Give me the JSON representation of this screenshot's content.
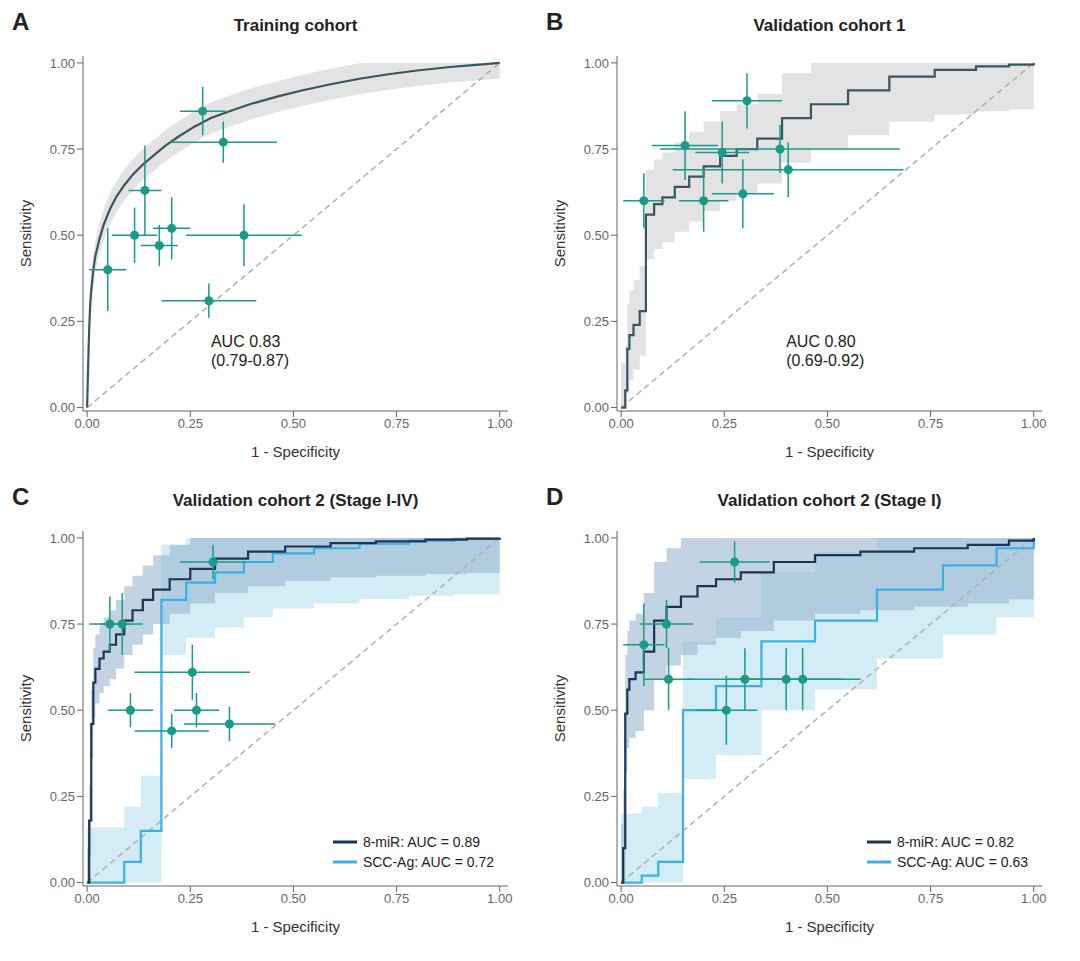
{
  "chart_data": [
    {
      "type": "line",
      "panel_label": "A",
      "title": "Training cohort",
      "xlabel": "1 - Specificity",
      "ylabel": "Sensitivity",
      "xlim": [
        -0.01,
        1.02
      ],
      "ylim": [
        -0.01,
        1.02
      ],
      "xticks": [
        {
          "value": 0,
          "label": "0.00"
        },
        {
          "value": 0.25,
          "label": "0.25"
        },
        {
          "value": 0.5,
          "label": "0.50"
        },
        {
          "value": 0.75,
          "label": "0.75"
        },
        {
          "value": 1,
          "label": "1.00"
        }
      ],
      "yticks": [
        {
          "value": 0,
          "label": "0.00"
        },
        {
          "value": 0.25,
          "label": "0.25"
        },
        {
          "value": 0.5,
          "label": "0.50"
        },
        {
          "value": 0.75,
          "label": "0.75"
        },
        {
          "value": 1,
          "label": "1.00"
        }
      ],
      "grid": false,
      "reference_line": {
        "x": [
          0,
          1
        ],
        "y": [
          0,
          1
        ],
        "color": "#b0b0b0",
        "line_style": "dashed"
      },
      "series": [
        {
          "type": "line",
          "color": "#3a5560",
          "ci_color": "#d0d0d0",
          "x": [
            0.0,
            0.002,
            0.004,
            0.006,
            0.008,
            0.01,
            0.015,
            0.02,
            0.03,
            0.04,
            0.055,
            0.07,
            0.09,
            0.11,
            0.135,
            0.16,
            0.19,
            0.22,
            0.26,
            0.3,
            0.35,
            0.4,
            0.46,
            0.52,
            0.59,
            0.66,
            0.73,
            0.8,
            0.88,
            0.95,
            1.0
          ],
          "values": [
            0.0,
            0.1,
            0.19,
            0.26,
            0.31,
            0.34,
            0.4,
            0.44,
            0.49,
            0.53,
            0.575,
            0.61,
            0.645,
            0.675,
            0.705,
            0.73,
            0.76,
            0.785,
            0.815,
            0.84,
            0.862,
            0.882,
            0.902,
            0.92,
            0.938,
            0.954,
            0.967,
            0.978,
            0.988,
            0.995,
            1.0
          ],
          "ci_lo": [
            0,
            0.055,
            0.145,
            0.215,
            0.265,
            0.295,
            0.355,
            0.395,
            0.445,
            0.485,
            0.53,
            0.565,
            0.6,
            0.63,
            0.66,
            0.685,
            0.715,
            0.74,
            0.77,
            0.795,
            0.817,
            0.837,
            0.857,
            0.875,
            0.893,
            0.909,
            0.922,
            0.933,
            0.943,
            0.95,
            0.955
          ],
          "ci_hi": [
            0.045,
            0.145,
            0.235,
            0.305,
            0.355,
            0.385,
            0.445,
            0.485,
            0.535,
            0.575,
            0.62,
            0.655,
            0.69,
            0.72,
            0.75,
            0.775,
            0.805,
            0.83,
            0.86,
            0.885,
            0.907,
            0.927,
            0.947,
            0.965,
            0.983,
            0.999,
            1,
            1,
            1,
            1,
            1
          ]
        }
      ],
      "point_color": "#1a9a8a",
      "points": [
        {
          "x": 0.05,
          "y": 0.4,
          "xerr": 0.045,
          "yerr": 0.12
        },
        {
          "x": 0.115,
          "y": 0.5,
          "xerr": 0.055,
          "yerr": 0.08
        },
        {
          "x": 0.14,
          "y": 0.63,
          "xerr": 0.04,
          "yerr": 0.13
        },
        {
          "x": 0.175,
          "y": 0.47,
          "xerr": 0.045,
          "yerr": 0.06
        },
        {
          "x": 0.205,
          "y": 0.52,
          "xerr": 0.045,
          "yerr": 0.09
        },
        {
          "x": 0.28,
          "y": 0.86,
          "xerr": 0.055,
          "yerr": 0.07
        },
        {
          "x": 0.33,
          "y": 0.77,
          "xerr": 0.13,
          "yerr": 0.06
        },
        {
          "x": 0.38,
          "y": 0.5,
          "xerr": 0.14,
          "yerr": 0.09
        },
        {
          "x": 0.295,
          "y": 0.31,
          "xerr": 0.115,
          "yerr": 0.05
        }
      ],
      "annotations": [
        {
          "text": "AUC 0.83\n(0.79-0.87)",
          "x": 0.3,
          "y": 0.22
        }
      ]
    },
    {
      "type": "line",
      "panel_label": "B",
      "title": "Validation cohort 1",
      "xlabel": "1 - Specificity",
      "ylabel": "Sensitivity",
      "xlim": [
        -0.01,
        1.02
      ],
      "ylim": [
        -0.01,
        1.02
      ],
      "xticks": [
        {
          "value": 0,
          "label": "0.00"
        },
        {
          "value": 0.25,
          "label": "0.25"
        },
        {
          "value": 0.5,
          "label": "0.50"
        },
        {
          "value": 0.75,
          "label": "0.75"
        },
        {
          "value": 1,
          "label": "1.00"
        }
      ],
      "yticks": [
        {
          "value": 0,
          "label": "0.00"
        },
        {
          "value": 0.25,
          "label": "0.25"
        },
        {
          "value": 0.5,
          "label": "0.50"
        },
        {
          "value": 0.75,
          "label": "0.75"
        },
        {
          "value": 1,
          "label": "1.00"
        }
      ],
      "grid": false,
      "reference_line": {
        "x": [
          0,
          1
        ],
        "y": [
          0,
          1
        ],
        "color": "#b0b0b0",
        "line_style": "dashed"
      },
      "series": [
        {
          "type": "step",
          "color": "#3a5560",
          "ci_color": "#d0d0d0",
          "x": [
            0.0,
            0.01,
            0.015,
            0.02,
            0.03,
            0.045,
            0.06,
            0.08,
            0.1,
            0.13,
            0.165,
            0.2,
            0.24,
            0.28,
            0.33,
            0.39,
            0.46,
            0.55,
            0.65,
            0.76,
            0.86,
            0.94,
            1.0
          ],
          "values": [
            0.0,
            0.05,
            0.17,
            0.21,
            0.24,
            0.28,
            0.56,
            0.59,
            0.61,
            0.64,
            0.67,
            0.7,
            0.73,
            0.75,
            0.78,
            0.84,
            0.88,
            0.92,
            0.96,
            0.98,
            0.99,
            0.995,
            1.0
          ],
          "ci_lo": [
            0,
            0,
            0.04,
            0.08,
            0.11,
            0.15,
            0.43,
            0.46,
            0.48,
            0.51,
            0.54,
            0.57,
            0.6,
            0.62,
            0.65,
            0.71,
            0.75,
            0.79,
            0.83,
            0.85,
            0.86,
            0.865,
            0.87
          ],
          "ci_hi": [
            0.13,
            0.18,
            0.3,
            0.34,
            0.37,
            0.41,
            0.69,
            0.72,
            0.74,
            0.77,
            0.8,
            0.83,
            0.86,
            0.88,
            0.91,
            0.97,
            1,
            1,
            1,
            1,
            1,
            1,
            1
          ]
        }
      ],
      "point_color": "#1a9a8a",
      "points": [
        {
          "x": 0.055,
          "y": 0.6,
          "xerr": 0.05,
          "yerr": 0.08
        },
        {
          "x": 0.155,
          "y": 0.76,
          "xerr": 0.08,
          "yerr": 0.1
        },
        {
          "x": 0.2,
          "y": 0.6,
          "xerr": 0.06,
          "yerr": 0.09
        },
        {
          "x": 0.245,
          "y": 0.74,
          "xerr": 0.065,
          "yerr": 0.09
        },
        {
          "x": 0.295,
          "y": 0.62,
          "xerr": 0.075,
          "yerr": 0.1
        },
        {
          "x": 0.305,
          "y": 0.89,
          "xerr": 0.085,
          "yerr": 0.08
        },
        {
          "x": 0.385,
          "y": 0.75,
          "xerr": 0.29,
          "yerr": 0.07
        },
        {
          "x": 0.405,
          "y": 0.69,
          "xerr": 0.28,
          "yerr": 0.08
        }
      ],
      "annotations": [
        {
          "text": "AUC 0.80\n(0.69-0.92)",
          "x": 0.4,
          "y": 0.22
        }
      ]
    },
    {
      "type": "line",
      "panel_label": "C",
      "title": "Validation cohort 2 (Stage I-IV)",
      "xlabel": "1 - Specificity",
      "ylabel": "Sensitivity",
      "xlim": [
        -0.01,
        1.02
      ],
      "ylim": [
        -0.01,
        1.02
      ],
      "xticks": [
        {
          "value": 0,
          "label": "0.00"
        },
        {
          "value": 0.25,
          "label": "0.25"
        },
        {
          "value": 0.5,
          "label": "0.50"
        },
        {
          "value": 0.75,
          "label": "0.75"
        },
        {
          "value": 1,
          "label": "1.00"
        }
      ],
      "yticks": [
        {
          "value": 0,
          "label": "0.00"
        },
        {
          "value": 0.25,
          "label": "0.25"
        },
        {
          "value": 0.5,
          "label": "0.50"
        },
        {
          "value": 0.75,
          "label": "0.75"
        },
        {
          "value": 1,
          "label": "1.00"
        }
      ],
      "grid": false,
      "legend": "lower right",
      "reference_line": {
        "x": [
          0,
          1
        ],
        "y": [
          0,
          1
        ],
        "color": "#b0b0b0",
        "line_style": "dashed"
      },
      "series": [
        {
          "name": "8-miR: AUC = 0.89",
          "type": "step",
          "color": "#1c3557",
          "ci_color": "#9ab8d0",
          "x": [
            0.0,
            0.005,
            0.01,
            0.015,
            0.02,
            0.03,
            0.04,
            0.055,
            0.07,
            0.09,
            0.11,
            0.135,
            0.16,
            0.2,
            0.25,
            0.31,
            0.39,
            0.48,
            0.59,
            0.7,
            0.82,
            0.92,
            1.0
          ],
          "values": [
            0.0,
            0.18,
            0.46,
            0.58,
            0.62,
            0.65,
            0.67,
            0.69,
            0.72,
            0.76,
            0.79,
            0.82,
            0.85,
            0.88,
            0.91,
            0.94,
            0.96,
            0.975,
            0.985,
            0.99,
            0.995,
            0.998,
            1.0
          ],
          "ci_lo": [
            0,
            0.08,
            0.36,
            0.48,
            0.52,
            0.55,
            0.57,
            0.59,
            0.62,
            0.66,
            0.69,
            0.72,
            0.75,
            0.78,
            0.81,
            0.84,
            0.86,
            0.875,
            0.885,
            0.89,
            0.895,
            0.898,
            0.9
          ],
          "ci_hi": [
            0.1,
            0.28,
            0.56,
            0.68,
            0.72,
            0.75,
            0.77,
            0.79,
            0.82,
            0.86,
            0.89,
            0.92,
            0.95,
            0.98,
            1,
            1,
            1,
            1,
            1,
            1,
            1,
            1,
            1
          ]
        },
        {
          "name": "SCC-Ag: AUC = 0.72",
          "type": "step",
          "color": "#3ab0e8",
          "ci_color": "#b8dff0",
          "x": [
            0.0,
            0.01,
            0.02,
            0.04,
            0.06,
            0.09,
            0.13,
            0.18,
            0.24,
            0.31,
            0.38,
            0.45,
            0.55,
            0.66,
            0.78,
            0.89,
            1.0
          ],
          "values": [
            0.0,
            0.0,
            0.0,
            0.0,
            0.0,
            0.06,
            0.15,
            0.82,
            0.87,
            0.9,
            0.93,
            0.955,
            0.97,
            0.983,
            0.992,
            0.997,
            1.0
          ],
          "ci_lo": [
            0,
            0,
            0,
            0,
            0,
            0,
            0,
            0.66,
            0.71,
            0.74,
            0.77,
            0.795,
            0.81,
            0.823,
            0.832,
            0.837,
            0.84
          ],
          "ci_hi": [
            0.16,
            0.16,
            0.16,
            0.16,
            0.16,
            0.22,
            0.31,
            0.98,
            1,
            1,
            1,
            1,
            1,
            1,
            1,
            1,
            1
          ]
        }
      ],
      "point_color": "#1a9a8a",
      "points": [
        {
          "x": 0.055,
          "y": 0.75,
          "xerr": 0.05,
          "yerr": 0.08
        },
        {
          "x": 0.085,
          "y": 0.75,
          "xerr": 0.05,
          "yerr": 0.09
        },
        {
          "x": 0.105,
          "y": 0.5,
          "xerr": 0.055,
          "yerr": 0.05
        },
        {
          "x": 0.205,
          "y": 0.44,
          "xerr": 0.09,
          "yerr": 0.05
        },
        {
          "x": 0.255,
          "y": 0.61,
          "xerr": 0.14,
          "yerr": 0.08
        },
        {
          "x": 0.265,
          "y": 0.5,
          "xerr": 0.055,
          "yerr": 0.05
        },
        {
          "x": 0.305,
          "y": 0.93,
          "xerr": 0.08,
          "yerr": 0.05
        },
        {
          "x": 0.345,
          "y": 0.46,
          "xerr": 0.11,
          "yerr": 0.05
        }
      ]
    },
    {
      "type": "line",
      "panel_label": "D",
      "title": "Validation cohort 2 (Stage I)",
      "xlabel": "1 - Specificity",
      "ylabel": "Sensitivity",
      "xlim": [
        -0.01,
        1.02
      ],
      "ylim": [
        -0.01,
        1.02
      ],
      "xticks": [
        {
          "value": 0,
          "label": "0.00"
        },
        {
          "value": 0.25,
          "label": "0.25"
        },
        {
          "value": 0.5,
          "label": "0.50"
        },
        {
          "value": 0.75,
          "label": "0.75"
        },
        {
          "value": 1,
          "label": "1.00"
        }
      ],
      "yticks": [
        {
          "value": 0,
          "label": "0.00"
        },
        {
          "value": 0.25,
          "label": "0.25"
        },
        {
          "value": 0.5,
          "label": "0.50"
        },
        {
          "value": 0.75,
          "label": "0.75"
        },
        {
          "value": 1,
          "label": "1.00"
        }
      ],
      "grid": false,
      "legend": "lower right",
      "reference_line": {
        "x": [
          0,
          1
        ],
        "y": [
          0,
          1
        ],
        "color": "#b0b0b0",
        "line_style": "dashed"
      },
      "series": [
        {
          "name": "8-miR: AUC = 0.82",
          "type": "step",
          "color": "#1c3557",
          "ci_color": "#9ab8d0",
          "x": [
            0.0,
            0.005,
            0.01,
            0.015,
            0.02,
            0.035,
            0.055,
            0.08,
            0.11,
            0.145,
            0.185,
            0.23,
            0.29,
            0.37,
            0.47,
            0.58,
            0.71,
            0.84,
            0.94,
            1.0
          ],
          "values": [
            0.0,
            0.1,
            0.49,
            0.56,
            0.59,
            0.61,
            0.67,
            0.76,
            0.8,
            0.83,
            0.86,
            0.88,
            0.9,
            0.93,
            0.95,
            0.96,
            0.97,
            0.98,
            0.992,
            1.0
          ],
          "ci_lo": [
            0,
            0,
            0.32,
            0.39,
            0.42,
            0.44,
            0.5,
            0.59,
            0.63,
            0.66,
            0.69,
            0.71,
            0.73,
            0.76,
            0.78,
            0.79,
            0.8,
            0.81,
            0.822,
            0.83
          ],
          "ci_hi": [
            0.17,
            0.27,
            0.66,
            0.73,
            0.76,
            0.78,
            0.84,
            0.93,
            0.97,
            1,
            1,
            1,
            1,
            1,
            1,
            1,
            1,
            1,
            1,
            1
          ]
        },
        {
          "name": "SCC-Ag: AUC = 0.63",
          "type": "step",
          "color": "#3ab0e8",
          "ci_color": "#b8dff0",
          "x": [
            0.0,
            0.02,
            0.05,
            0.09,
            0.15,
            0.23,
            0.34,
            0.47,
            0.62,
            0.78,
            0.91,
            1.0
          ],
          "values": [
            0.0,
            0.0,
            0.02,
            0.06,
            0.5,
            0.57,
            0.7,
            0.76,
            0.85,
            0.92,
            0.97,
            1.0
          ],
          "ci_lo": [
            0,
            0,
            0,
            0,
            0.3,
            0.37,
            0.5,
            0.56,
            0.65,
            0.72,
            0.77,
            0.8
          ],
          "ci_hi": [
            0.2,
            0.2,
            0.22,
            0.26,
            0.7,
            0.77,
            0.9,
            0.96,
            1,
            1,
            1,
            1
          ]
        }
      ],
      "point_color": "#1a9a8a",
      "points": [
        {
          "x": 0.055,
          "y": 0.69,
          "xerr": 0.05,
          "yerr": 0.12
        },
        {
          "x": 0.11,
          "y": 0.75,
          "xerr": 0.065,
          "yerr": 0.07
        },
        {
          "x": 0.115,
          "y": 0.59,
          "xerr": 0.06,
          "yerr": 0.09
        },
        {
          "x": 0.255,
          "y": 0.5,
          "xerr": 0.075,
          "yerr": 0.1
        },
        {
          "x": 0.275,
          "y": 0.93,
          "xerr": 0.085,
          "yerr": 0.06
        },
        {
          "x": 0.3,
          "y": 0.59,
          "xerr": 0.14,
          "yerr": 0.09
        },
        {
          "x": 0.4,
          "y": 0.59,
          "xerr": 0.14,
          "yerr": 0.09
        },
        {
          "x": 0.44,
          "y": 0.59,
          "xerr": 0.14,
          "yerr": 0.09
        }
      ]
    }
  ]
}
